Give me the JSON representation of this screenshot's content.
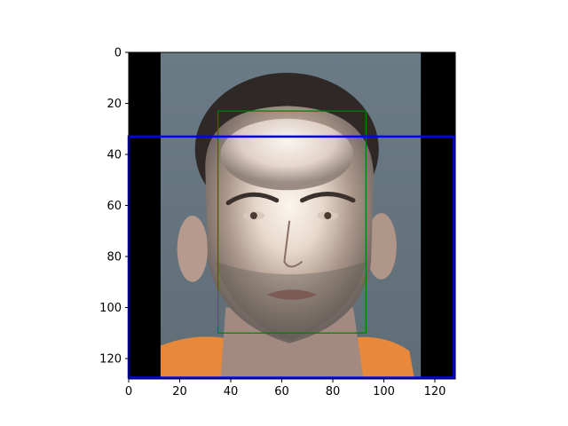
{
  "chart_data": {
    "type": "image",
    "title": "",
    "xlabel": "",
    "ylabel": "",
    "xlim": [
      0,
      128
    ],
    "ylim": [
      128,
      0
    ],
    "y_inverted": true,
    "x_ticks": [
      0,
      20,
      40,
      60,
      80,
      100,
      120
    ],
    "y_ticks": [
      0,
      20,
      40,
      60,
      80,
      100,
      120
    ],
    "image": {
      "subject": "frontal face portrait (mugshot) on grey background",
      "padding_black_columns": [
        [
          0,
          12.5
        ],
        [
          114.5,
          128
        ]
      ],
      "content_columns": [
        12.5,
        114.5
      ]
    },
    "boxes": [
      {
        "label": "",
        "color": "#008000",
        "x0": 35,
        "y0": 23,
        "x1": 93,
        "y1": 110
      },
      {
        "label": "",
        "color": "#0000ff",
        "x0": 0,
        "y0": 33,
        "x1": 127.5,
        "y1": 127.5
      }
    ]
  }
}
